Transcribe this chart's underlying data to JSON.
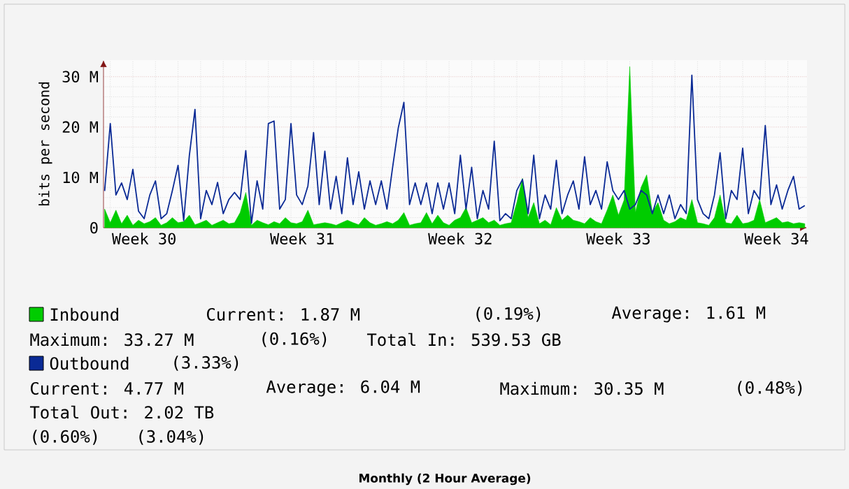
{
  "chart_data": {
    "type": "line",
    "title": "Monthly (2 Hour Average)",
    "ylabel": "bits per second",
    "categories": [
      null,
      null,
      null,
      null,
      null,
      null,
      null,
      "Week 30",
      null,
      null,
      null,
      null,
      null,
      null,
      null,
      null,
      null,
      null,
      null,
      null,
      null,
      null,
      null,
      null,
      null,
      null,
      null,
      null,
      null,
      null,
      null,
      null,
      null,
      null,
      null,
      "Week 31",
      null,
      null,
      null,
      null,
      null,
      null,
      null,
      null,
      null,
      null,
      null,
      null,
      null,
      null,
      null,
      null,
      null,
      null,
      null,
      null,
      null,
      null,
      null,
      null,
      null,
      null,
      null,
      "Week 32",
      null,
      null,
      null,
      null,
      null,
      null,
      null,
      null,
      null,
      null,
      null,
      null,
      null,
      null,
      null,
      null,
      null,
      null,
      null,
      null,
      null,
      null,
      null,
      null,
      null,
      null,
      null,
      "Week 33",
      null,
      null,
      null,
      null,
      null,
      null,
      null,
      null,
      null,
      null,
      null,
      null,
      null,
      null,
      null,
      null,
      null,
      null,
      null,
      null,
      null,
      null,
      null,
      null,
      null,
      null,
      null,
      "Week 34",
      null,
      null,
      null,
      null,
      null
    ],
    "ylim": [
      0,
      33.3
    ],
    "yticks": [
      0,
      {
        "value": 10,
        "label": "10 M"
      },
      {
        "value": 20,
        "label": "20 M"
      },
      {
        "value": 30,
        "label": "30 M"
      }
    ],
    "grid": true,
    "legend": "bottom",
    "series": [
      {
        "name": "Inbound",
        "type": "area",
        "color": "#00cc00",
        "values": [
          3.7,
          1.0,
          3.5,
          0.8,
          2.5,
          0.5,
          1.5,
          0.8,
          1.2,
          2.0,
          0.5,
          1.0,
          2.0,
          1.0,
          1.2,
          2.5,
          0.6,
          1.0,
          1.5,
          0.5,
          1.0,
          1.5,
          0.8,
          1.0,
          3.0,
          7.0,
          0.5,
          1.5,
          1.0,
          0.6,
          1.2,
          0.8,
          2.0,
          1.0,
          0.8,
          1.2,
          3.5,
          0.6,
          0.8,
          1.0,
          0.8,
          0.5,
          1.0,
          1.5,
          1.0,
          0.6,
          2.0,
          1.0,
          0.5,
          0.8,
          1.2,
          0.8,
          1.5,
          3.0,
          0.5,
          0.8,
          1.0,
          3.0,
          0.8,
          2.5,
          1.0,
          0.5,
          1.5,
          2.0,
          4.0,
          1.0,
          1.5,
          2.0,
          1.0,
          1.5,
          0.5,
          0.8,
          1.0,
          5.0,
          9.8,
          2.0,
          5.0,
          0.8,
          1.5,
          0.6,
          4.0,
          1.5,
          2.5,
          1.5,
          1.2,
          0.8,
          2.0,
          1.2,
          0.8,
          3.5,
          6.5,
          2.5,
          5.5,
          32,
          3.0,
          8.0,
          10.5,
          3.0,
          5.0,
          1.5,
          0.8,
          1.2,
          2.0,
          1.5,
          5.6,
          1.0,
          0.8,
          0.5,
          2.0,
          6.5,
          1.0,
          0.8,
          2.5,
          0.8,
          1.0,
          1.5,
          5.6,
          1.0,
          1.5,
          2.0,
          1.0,
          1.2,
          0.8,
          1.0,
          0.8
        ]
      },
      {
        "name": "Outbound",
        "color": "#0a2a95",
        "values": [
          7.3,
          20.7,
          6.5,
          8.9,
          5.6,
          11.6,
          3.3,
          1.8,
          6.5,
          9.3,
          1.8,
          2.8,
          7.4,
          12.4,
          1.4,
          14.3,
          23.5,
          1.8,
          7.4,
          4.6,
          9,
          2.8,
          5.6,
          7,
          5.6,
          15.3,
          0.9,
          9.3,
          3.7,
          20.7,
          21.2,
          3.7,
          5.6,
          20.7,
          6.5,
          4.6,
          8.3,
          18.9,
          4.6,
          15.2,
          3.7,
          10.2,
          2.8,
          13.9,
          4.6,
          11.1,
          3.7,
          9.3,
          4.6,
          9.3,
          3.7,
          12,
          19.8,
          24.9,
          4.6,
          8.9,
          4.6,
          8.9,
          2.8,
          8.9,
          3.7,
          8.9,
          2.8,
          14.4,
          3.7,
          12,
          1.8,
          7.4,
          3.7,
          17.2,
          1.4,
          2.8,
          1.8,
          7.4,
          9.6,
          2.8,
          14.4,
          1.8,
          6.5,
          3.7,
          13.4,
          2.8,
          6.5,
          9.3,
          3.7,
          14.1,
          4.6,
          7.4,
          3.7,
          13.1,
          7.4,
          5.6,
          7.4,
          3.7,
          4.6,
          7.4,
          6.5,
          2.8,
          6.5,
          2.8,
          6.5,
          1.8,
          4.6,
          2.8,
          30.3,
          5.6,
          2.8,
          1.8,
          6.5,
          14.9,
          1.8,
          7.4,
          5.6,
          15.8,
          2.8,
          7.4,
          5.6,
          20.3,
          4.6,
          8.5,
          3.7,
          7.4,
          10.2,
          3.7,
          4.4
        ]
      }
    ],
    "annotations": [
      "Current: 1.87 M",
      "(0.19%)",
      "Average: 1.61 M",
      "Maximum: 33.27 M",
      "(0.16%)",
      "Total In: 539.53 GB",
      "(3.33%)",
      "Current: 4.77 M",
      "Average: 6.04 M",
      "Maximum: 30.35 M",
      "(0.48%)",
      "Total Out: 2.02 TB",
      "(0.60%)",
      "(3.04%)"
    ]
  }
}
